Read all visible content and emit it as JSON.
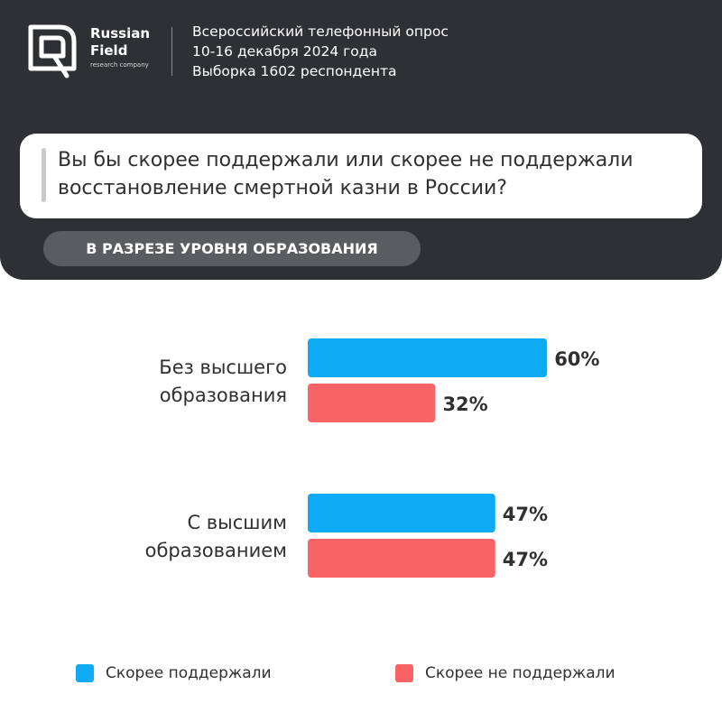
{
  "header": {
    "logo": {
      "line1": "Russian",
      "line2": "Field",
      "sub": "research company"
    },
    "survey": {
      "line1": "Всероссийский телефонный опрос",
      "line2": "10-16 декабря 2024 года",
      "line3": "Выборка 1602 респондента"
    },
    "question": "Вы бы скорее поддержали или скорее не поддержали восстановление смертной казни в России?",
    "section": "В РАЗРЕЗЕ УРОВНЯ ОБРАЗОВАНИЯ"
  },
  "colors": {
    "support": "#0eabf4",
    "oppose": "#fb6466",
    "dark": "#2f3033",
    "text": "#2f3033"
  },
  "chart_data": {
    "type": "bar",
    "orientation": "horizontal",
    "categories": [
      [
        "Без высшего",
        "образования"
      ],
      [
        "С высшим",
        "образованием"
      ]
    ],
    "series": [
      {
        "name": "Скорее поддержали",
        "values": [
          60,
          47
        ],
        "labels": [
          "60%",
          "47%"
        ]
      },
      {
        "name": "Скорее не поддержали",
        "values": [
          32,
          47
        ],
        "labels": [
          "32%",
          "47%"
        ]
      }
    ],
    "unit": "%",
    "legend": "bottom"
  }
}
